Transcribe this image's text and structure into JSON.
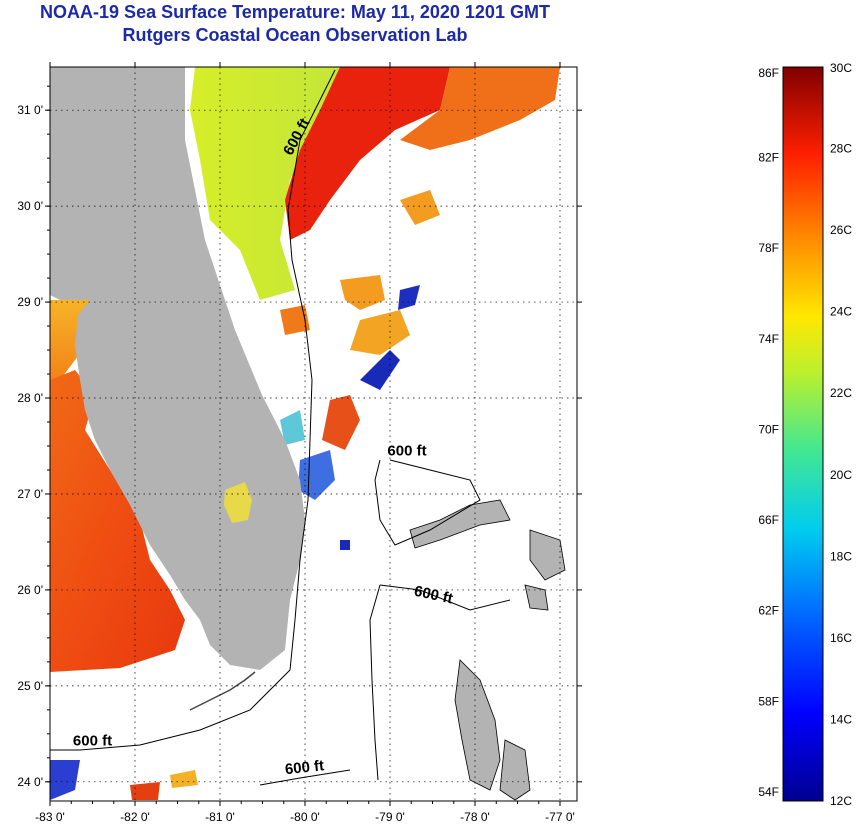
{
  "header": {
    "title": "NOAA-19 Sea Surface Temperature:  May 11, 2020 1201 GMT",
    "subtitle": "Rutgers Coastal Ocean Observation Lab"
  },
  "map": {
    "lon_range": [
      -83.0,
      -76.8
    ],
    "lat_range": [
      23.8,
      31.45
    ],
    "lon_ticks": [
      {
        "value": -83,
        "label": "-83 0'"
      },
      {
        "value": -82,
        "label": "-82 0'"
      },
      {
        "value": -81,
        "label": "-81 0'"
      },
      {
        "value": -80,
        "label": "-80 0'"
      },
      {
        "value": -79,
        "label": "-79 0'"
      },
      {
        "value": -78,
        "label": "-78 0'"
      },
      {
        "value": -77,
        "label": "-77 0'"
      }
    ],
    "lat_ticks": [
      {
        "value": 24,
        "label": "24 0'"
      },
      {
        "value": 25,
        "label": "25 0'"
      },
      {
        "value": 26,
        "label": "26 0'"
      },
      {
        "value": 27,
        "label": "27 0'"
      },
      {
        "value": 28,
        "label": "28 0'"
      },
      {
        "value": 29,
        "label": "29 0'"
      },
      {
        "value": 30,
        "label": "30 0'"
      },
      {
        "value": 31,
        "label": "31 0'"
      }
    ],
    "grid": "dotted",
    "colors": {
      "land": "#b3b3b3",
      "cloud": "#ffffff",
      "contour": "#000000"
    },
    "contour_labels": [
      {
        "text": "600 ft",
        "lon": -80.05,
        "lat": 30.7,
        "rotate": -62
      },
      {
        "text": "600 ft",
        "lon": -78.8,
        "lat": 27.4,
        "rotate": 0
      },
      {
        "text": "600 ft",
        "lon": -78.5,
        "lat": 25.9,
        "rotate": 12
      },
      {
        "text": "600 ft",
        "lon": -82.5,
        "lat": 24.38,
        "rotate": 0
      },
      {
        "text": "600 ft",
        "lon": -80.0,
        "lat": 24.1,
        "rotate": -6
      }
    ]
  },
  "colorbar": {
    "f_labels": [
      "86F",
      "82F",
      "78F",
      "74F",
      "70F",
      "66F",
      "62F",
      "58F",
      "54F"
    ],
    "f_values": [
      86,
      82,
      78,
      74,
      70,
      66,
      62,
      58,
      54
    ],
    "c_labels": [
      "30C",
      "28C",
      "26C",
      "24C",
      "22C",
      "20C",
      "18C",
      "16C",
      "14C",
      "12C"
    ],
    "c_values": [
      30,
      28,
      26,
      24,
      22,
      20,
      18,
      16,
      14,
      12
    ],
    "range_c": [
      12,
      30
    ]
  }
}
